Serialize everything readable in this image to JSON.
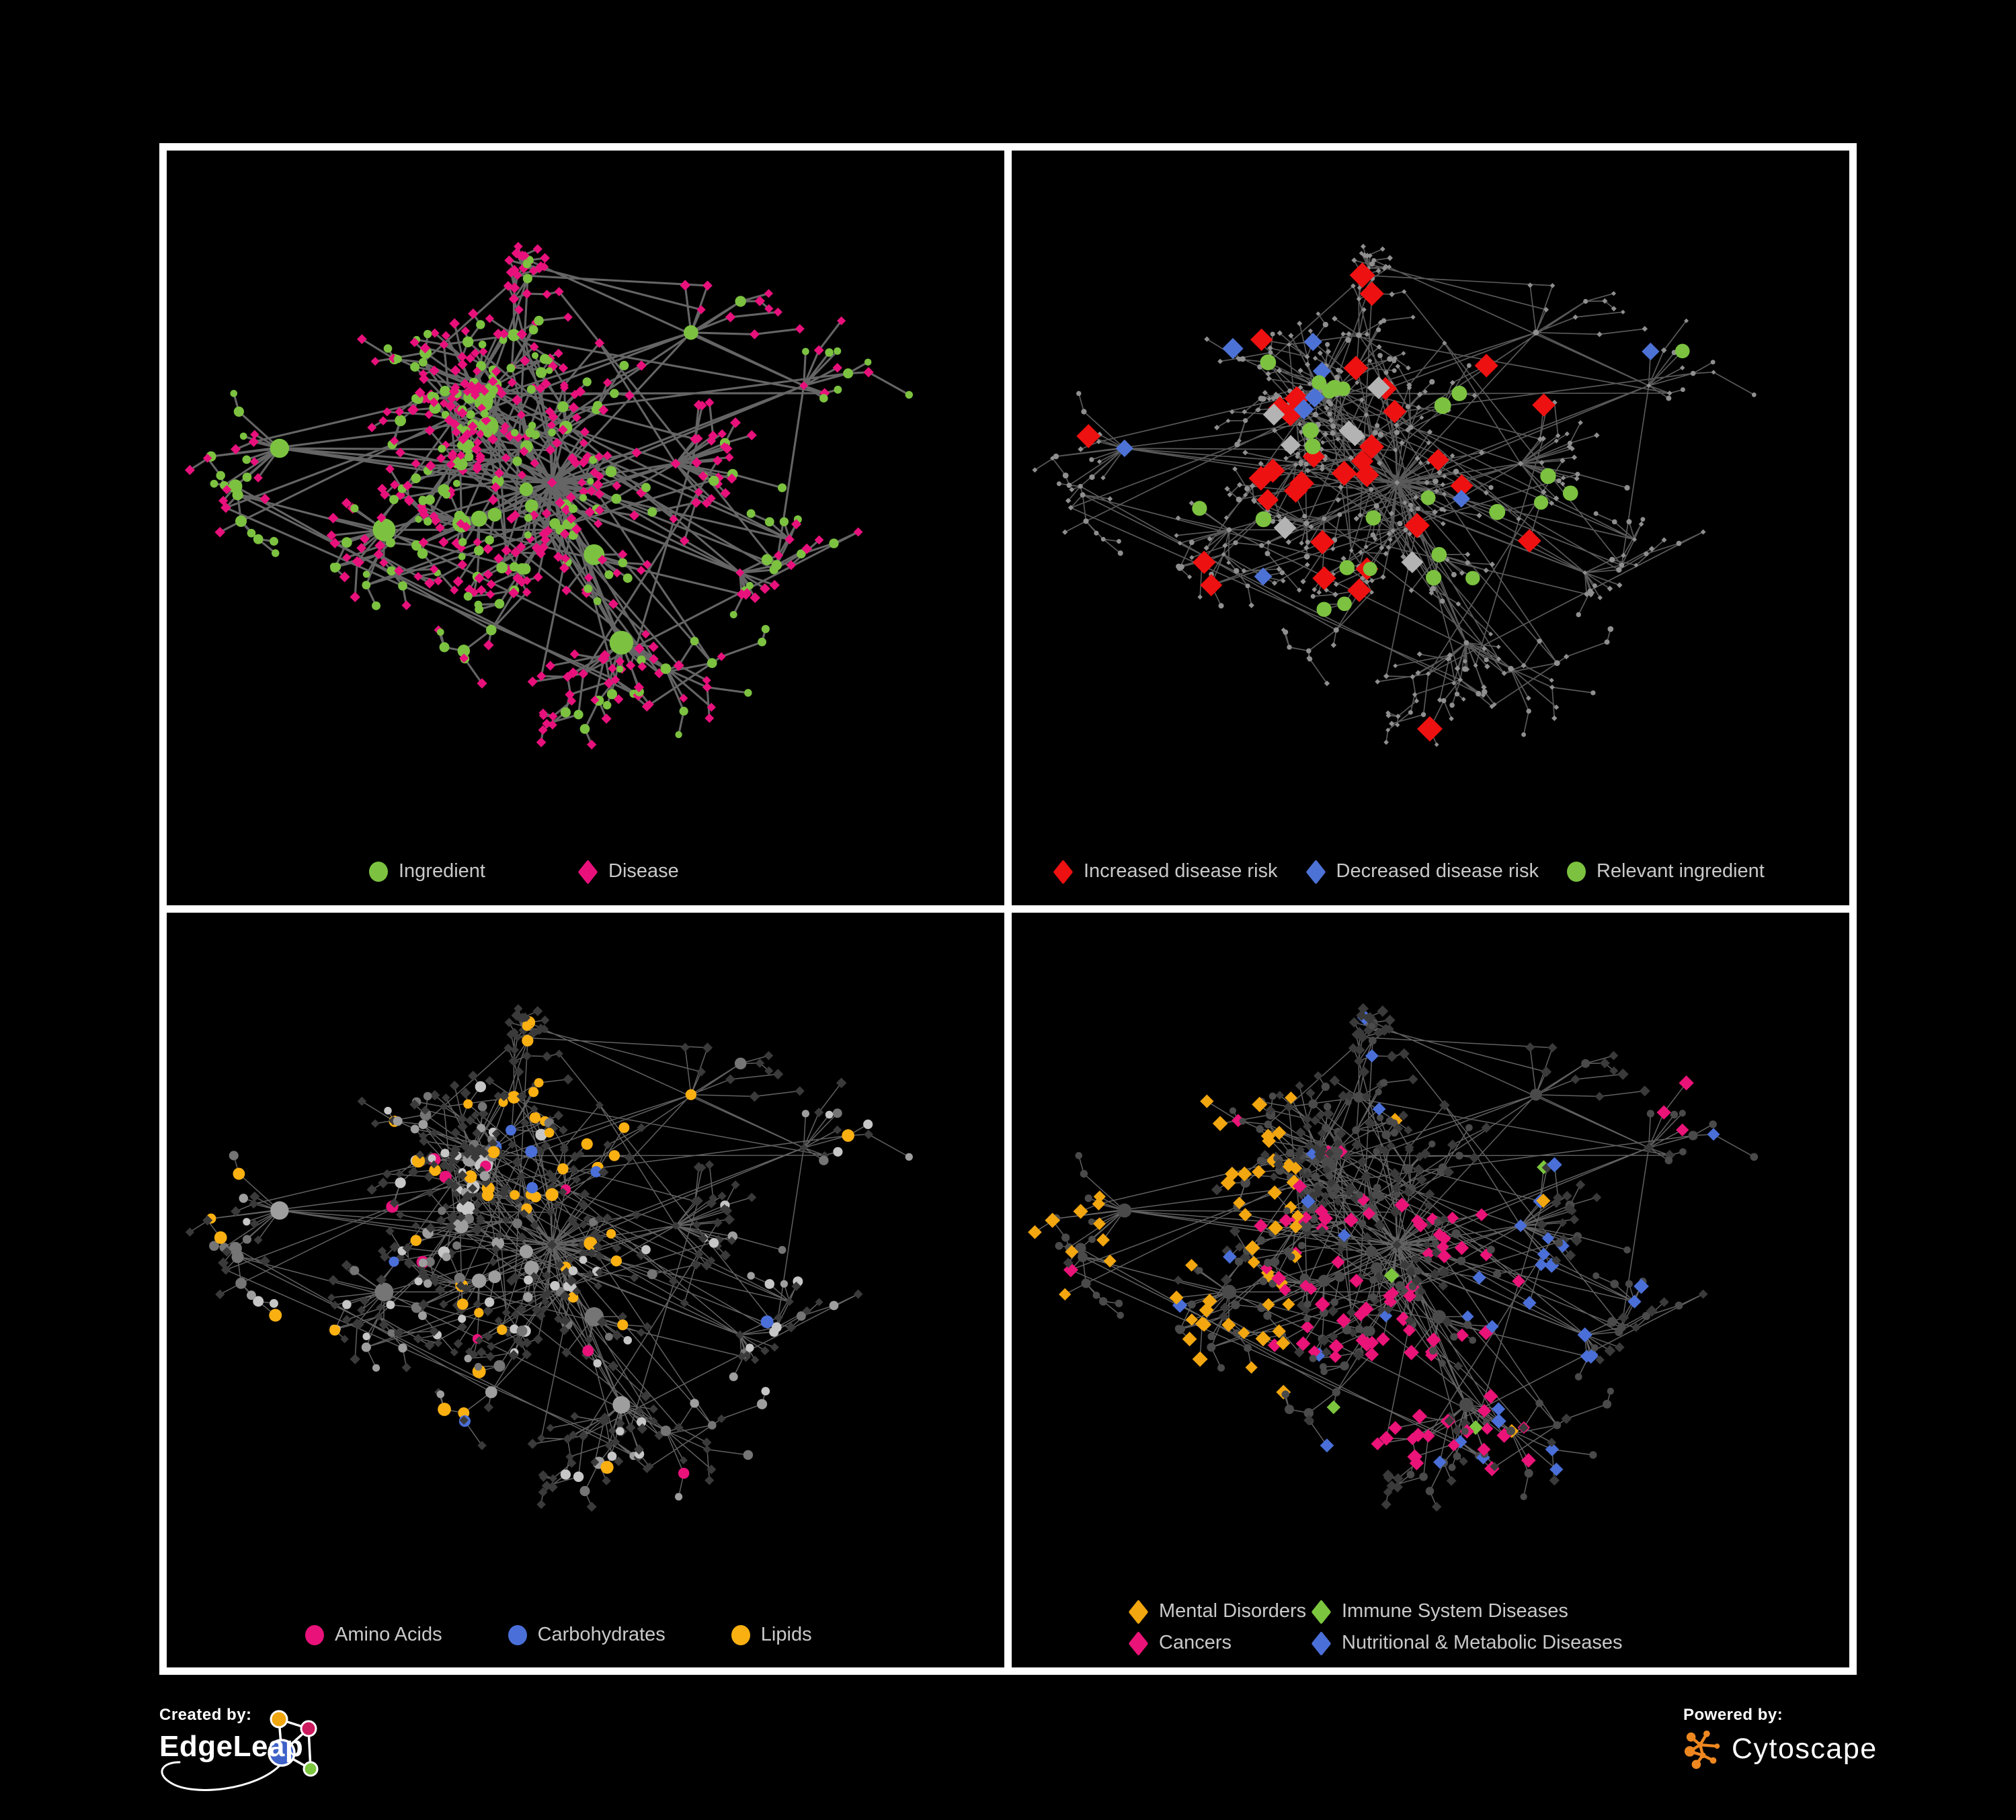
{
  "figure": {
    "background": "#000000",
    "frame_color": "#ffffff",
    "legend_text_color": "#c9c9c9"
  },
  "network": {
    "seed": 77,
    "n": 620,
    "hubs": 11,
    "bias": 2.2,
    "extraEdges": 85,
    "ingredientInnerP": 0.55,
    "ingredientLeafP": 0.22
  },
  "panels": [
    {
      "name": "ingredient-disease",
      "legend": [
        {
          "shape": "circle",
          "color": "#7cc240",
          "label": "Ingredient"
        },
        {
          "shape": "diamond",
          "color": "#e8117c",
          "label": "Disease"
        }
      ],
      "style": {
        "mode": "two-class",
        "edge": "#6a6a6a",
        "edgeWidth": 3.1,
        "edgeOpacity": 0.95,
        "circleColor": "#7cc240",
        "diamondColor": "#e8117c"
      }
    },
    {
      "name": "disease-risk",
      "legend": [
        {
          "shape": "diamond",
          "color": "#ee1111",
          "label": "Increased disease risk"
        },
        {
          "shape": "diamond",
          "color": "#4d72d6",
          "label": "Decreased disease risk"
        },
        {
          "shape": "circle",
          "color": "#7cc240",
          "label": "Relevant ingredient"
        }
      ],
      "style": {
        "mode": "spotlight",
        "edge": "#5e5e5e",
        "edgeWidth": 1.7,
        "edgeOpacity": 0.95,
        "dimColor": "#8f8f8f",
        "dimSize": 3.4,
        "marks": [
          {
            "shape": "diamond",
            "color": "#ee1111",
            "count": 33,
            "size": 16,
            "spread": 0.3
          },
          {
            "shape": "diamond",
            "color": "#4d72d6",
            "count": 9,
            "size": 13,
            "spread": 0.6
          },
          {
            "shape": "circle",
            "color": "#7cc240",
            "count": 25,
            "size": 10.5,
            "spread": 0.33
          },
          {
            "shape": "diamond",
            "color": "#b3b3b3",
            "count": 7,
            "size": 14,
            "spread": 0.28
          }
        ]
      }
    },
    {
      "name": "macronutrient-classes",
      "legend": [
        {
          "shape": "circle",
          "color": "#e8127a",
          "label": "Amino Acids"
        },
        {
          "shape": "circle",
          "color": "#4a6fd8",
          "label": "Carbohydrates"
        },
        {
          "shape": "circle",
          "color": "#fbb012",
          "label": "Lipids"
        }
      ],
      "style": {
        "mode": "ingredient-classes",
        "edge": "#868686",
        "edgeWidth": 1.5,
        "edgeOpacity": 0.72,
        "diseaseColor": "#3a3a3a",
        "grayColors": [
          "#9e9e9e",
          "#757575",
          "#c6c6c6"
        ],
        "classes": [
          {
            "color": "#fbb012",
            "p": 0.18,
            "clusterP": 0.6
          },
          {
            "color": "#4a6fd8",
            "p": 0.03,
            "clusterP": 0.18
          },
          {
            "color": "#e8127a",
            "p": 0.06,
            "clusterP": 0.02
          }
        ]
      }
    },
    {
      "name": "disease-classes",
      "legend": [
        {
          "shape": "diamond",
          "color": "#f2a60f",
          "label": "Mental Disorders"
        },
        {
          "shape": "diamond",
          "color": "#7cc63f",
          "label": "Immune System Diseases"
        },
        {
          "shape": "diamond",
          "color": "#ea1378",
          "label": "Cancers"
        },
        {
          "shape": "diamond",
          "color": "#4a6fd8",
          "label": "Nutritional & Metabolic Diseases"
        }
      ],
      "style": {
        "mode": "disease-classes",
        "edge": "#7c7c7c",
        "edgeWidth": 1.5,
        "edgeOpacity": 0.78,
        "dimDiamond": "#3a3a3a",
        "dimCircle": "#4a4a4a",
        "orange": "#f2a60f",
        "green": "#7cc63f",
        "pink": "#ea1378",
        "blue": "#4a6fd8"
      }
    }
  ],
  "footer": {
    "created_by": "Created by:",
    "edgeleap": "EdgeLeap",
    "powered_by": "Powered by:",
    "cytoscape": "Cytoscape",
    "edgeleap_colors": {
      "blue": "#3f62c9",
      "orange": "#f0a60e",
      "crimson": "#cc1a5e",
      "green": "#7cc63f"
    },
    "cytoscape_orange": "#ee8720"
  }
}
